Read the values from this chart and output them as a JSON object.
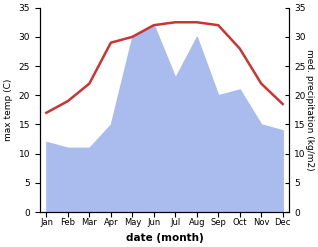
{
  "months": [
    "Jan",
    "Feb",
    "Mar",
    "Apr",
    "May",
    "Jun",
    "Jul",
    "Aug",
    "Sep",
    "Oct",
    "Nov",
    "Dec"
  ],
  "temperature": [
    17,
    19,
    22,
    29,
    30,
    32,
    32.5,
    32.5,
    32,
    28,
    22,
    18.5
  ],
  "precipitation": [
    12,
    11,
    11,
    15,
    30,
    32,
    23,
    30,
    20,
    21,
    15,
    14
  ],
  "temp_color": "#cc3333",
  "precip_color": "#aabbee",
  "ylabel_left": "max temp (C)",
  "ylabel_right": "med. precipitation (kg/m2)",
  "xlabel": "date (month)",
  "ylim": [
    0,
    35
  ],
  "yticks": [
    0,
    5,
    10,
    15,
    20,
    25,
    30,
    35
  ],
  "bg_color": "#ffffff"
}
